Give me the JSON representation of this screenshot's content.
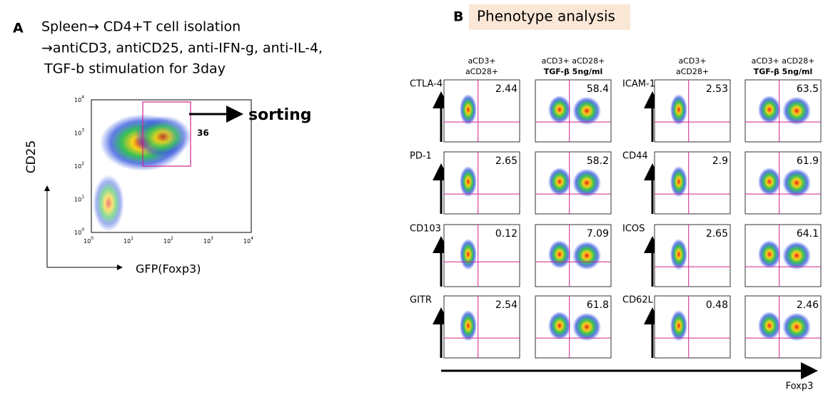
{
  "panel_a": {
    "letter": "A",
    "lines": [
      "Spleen→ CD4+T cell isolation",
      "→antiCD3, antiCD25, anti-IFN-g, anti-IL-4,",
      "TGF-b stimulation for 3day"
    ],
    "y_label": "CD25",
    "x_label": "GFP(Foxp3)",
    "tick_base": "10",
    "tick_exponents": [
      "0",
      "1",
      "2",
      "3",
      "4"
    ],
    "gate_value": 36,
    "action": "sorting"
  },
  "panel_b": {
    "letter": "B",
    "title": "Phenotype analysis",
    "columns": [
      {
        "line1": "aCD3+",
        "line2": "aCD28+"
      },
      {
        "line1": "aCD3+ aCD28+",
        "line2": "TGF-β 5ng/ml"
      }
    ],
    "groups": [
      {
        "markers": [
          {
            "name": "CTLA-4",
            "values": [
              2.44,
              58.4
            ]
          },
          {
            "name": "PD-1",
            "values": [
              2.65,
              58.2
            ]
          },
          {
            "name": "CD103",
            "values": [
              0.12,
              7.09
            ]
          },
          {
            "name": "GITR",
            "values": [
              2.54,
              61.8
            ]
          }
        ]
      },
      {
        "markers": [
          {
            "name": "ICAM-1",
            "values": [
              2.53,
              63.5
            ]
          },
          {
            "name": "CD44",
            "values": [
              2.9,
              61.9
            ]
          },
          {
            "name": "ICOS",
            "values": [
              2.65,
              64.1
            ]
          },
          {
            "name": "CD62L",
            "values": [
              0.48,
              2.46
            ]
          }
        ]
      }
    ],
    "x_label": "Foxp3"
  }
}
